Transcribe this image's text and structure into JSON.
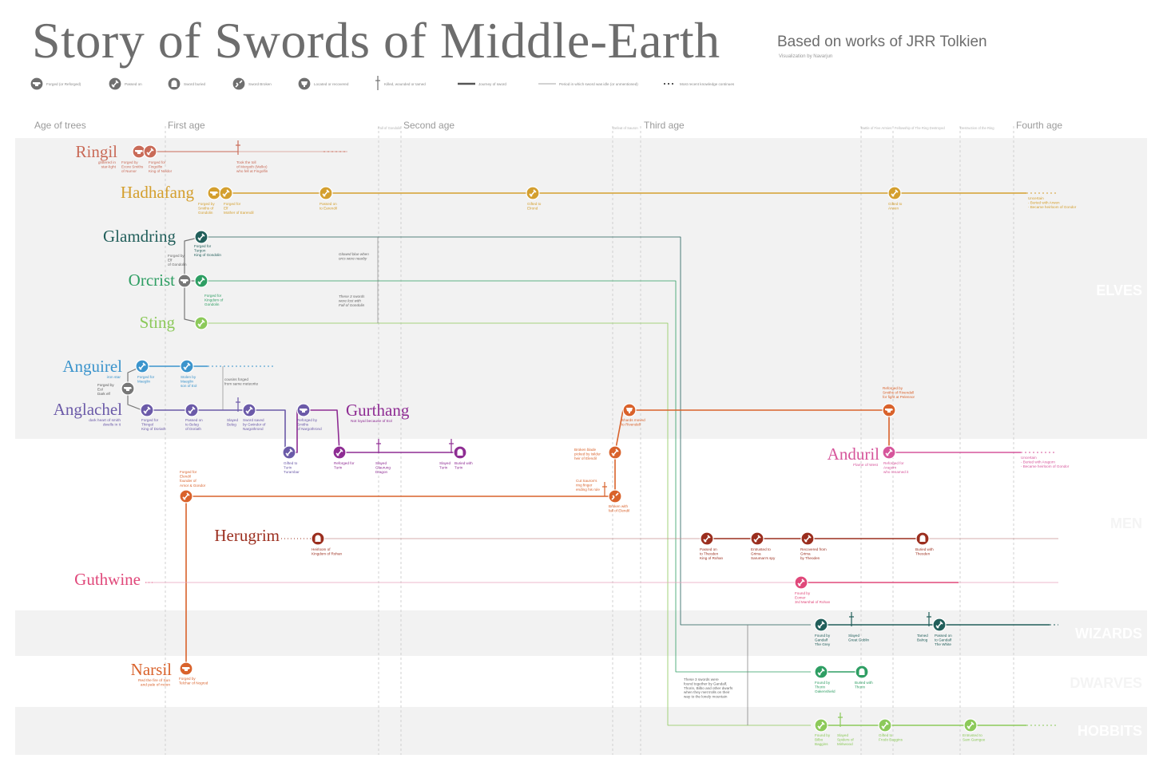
{
  "title": "Story of Swords of Middle-Earth",
  "subtitle": "Based on works of JRR Tolkien",
  "credit": "Visualization by Navarjun",
  "colors": {
    "band": "#f2f2f2",
    "grid": "#d0d0d0",
    "ringil": "#c96b58",
    "hadhafang": "#d49f2e",
    "glamdring": "#215e5a",
    "orcrist": "#2e9e63",
    "sting": "#8cc95a",
    "anguirel": "#3b94cc",
    "anglachel": "#6b5aa8",
    "gurthang": "#8e2c93",
    "anduril": "#d6559b",
    "narsil": "#d9622b",
    "herugrim": "#9b2e1e",
    "guthwine": "#e0487a",
    "gray": "#777777"
  },
  "legend": [
    {
      "icon": "anvil-icon",
      "label": "Forged (or Reforged)"
    },
    {
      "icon": "passed-icon",
      "label": "Passed on"
    },
    {
      "icon": "tomb-icon",
      "label": "Sword buried"
    },
    {
      "icon": "broken-sword-icon",
      "label": "Sword Broken"
    },
    {
      "icon": "cup-icon",
      "label": "Located or recovered"
    },
    {
      "icon": "dagger-icon",
      "label": "Killed, wounded or tamed"
    },
    {
      "icon": "thick-line",
      "label": "Journey of sword"
    },
    {
      "icon": "thin-line",
      "label": "Period in which sword was idle (or unmentioned)"
    },
    {
      "icon": "dotted-line",
      "label": "Most recent knowledge continues"
    }
  ],
  "ages": [
    "Age of trees",
    "First age",
    "Second age",
    "Third age",
    "Fourth age"
  ],
  "age_events": [
    "Fall of Gondolin",
    "Defeat of Sauron",
    "Battle of Five Armies",
    "Fellowship of The Ring Destroyed",
    "Destruction of the Ring"
  ],
  "categories": [
    "ELVES",
    "MEN",
    "WIZARDS",
    "DWARVES",
    "HOBBITS"
  ],
  "swords": {
    "ringil": {
      "name": "Ringil",
      "meaning": [
        "glittered in",
        "star-light"
      ]
    },
    "hadhafang": {
      "name": "Hadhafang"
    },
    "glamdring": {
      "name": "Glamdring"
    },
    "orcrist": {
      "name": "Orcrist"
    },
    "sting": {
      "name": "Sting"
    },
    "anguirel": {
      "name": "Anguirel",
      "meaning": [
        "iron star"
      ]
    },
    "anglachel": {
      "name": "Anglachel",
      "meaning": [
        "dark heart of smith",
        "dwells in it"
      ]
    },
    "gurthang": {
      "name": "Gurthang",
      "meaning": [
        "Not loyal because of Eol"
      ]
    },
    "anduril": {
      "name": "Anduril",
      "meaning": [
        "Flame of West"
      ]
    },
    "herugrim": {
      "name": "Herugrim"
    },
    "guthwine": {
      "name": "Guthwine"
    },
    "narsil": {
      "name": "Narsil",
      "meaning": [
        "Red the fire of Sun",
        "and pale of moon"
      ]
    }
  },
  "events": [
    {
      "label": [
        "Forged by",
        "Ecore Smiths",
        "of Numor"
      ]
    },
    {
      "label": [
        "Forged for",
        "Fingolfin",
        "King of Noldor"
      ]
    },
    {
      "label": [
        "Took the toll",
        "of Morgoth (Melko)",
        "who fell at Fingolfin"
      ]
    },
    {
      "label": [
        "Forged by",
        "Smiths of",
        "Gondolin"
      ]
    },
    {
      "label": [
        "Forged for",
        "Elf",
        "Mother of Earendil"
      ]
    },
    {
      "label": [
        "Passed on",
        "to Earendil"
      ]
    },
    {
      "label": [
        "Gifted to",
        "Elrond"
      ]
    },
    {
      "label": [
        "Gifted to",
        "Arwen"
      ]
    },
    {
      "label": [
        "Uncertain",
        "- Buried with Arwen",
        "- Became heirloom of Gondor"
      ]
    },
    {
      "label": [
        "Forged for",
        "Turgon",
        "King of Gondolin"
      ]
    },
    {
      "label": [
        "Forged by",
        "Elf",
        "of Gondolin"
      ]
    },
    {
      "label": [
        "Forged for",
        "Kingdom of",
        "Gondolin"
      ]
    },
    {
      "label": [
        "Glowed blue when",
        "orcs were nearby"
      ]
    },
    {
      "label": [
        "These 3 swords",
        "were lost with",
        "Fall of Gondolin"
      ]
    },
    {
      "label": [
        "Forged for",
        "Maeglin"
      ]
    },
    {
      "label": [
        "Stolen by",
        "Maeglin",
        "son of Eol"
      ]
    },
    {
      "label": [
        "Forged by",
        "Eol",
        "Dark elf"
      ]
    },
    {
      "label": [
        "cousins forged",
        "from same meteorite"
      ]
    },
    {
      "label": [
        "Forged for",
        "Thingol",
        "King of Doriath"
      ]
    },
    {
      "label": [
        "Passed on",
        "to Beleg",
        "of Doriath"
      ]
    },
    {
      "label": [
        "Slayed",
        "Beleg"
      ]
    },
    {
      "label": [
        "Sword saved",
        "by Gwindor of",
        "Nargothrond"
      ]
    },
    {
      "label": [
        "Reforged by",
        "Smiths",
        "of Nargothrond"
      ]
    },
    {
      "label": [
        "Gifted to",
        "Turin",
        "Turambar"
      ]
    },
    {
      "label": [
        "Reforged for",
        "Turin"
      ]
    },
    {
      "label": [
        "Slayed",
        "Glaurung",
        "Dragon"
      ]
    },
    {
      "label": [
        "Slayed",
        "Turin"
      ]
    },
    {
      "label": [
        "Buried with",
        "Turin"
      ]
    },
    {
      "label": [
        "Reforged by",
        "Smiths of Rivendell",
        "for fight at Pelennor"
      ]
    },
    {
      "label": [
        "Shards moved",
        "to Rivendell"
      ]
    },
    {
      "label": [
        "Broken blade",
        "picked by Isildur",
        "heir of Elendil"
      ]
    },
    {
      "label": [
        "Cut Sauron's",
        "ring finger",
        "ending his rule"
      ]
    },
    {
      "label": [
        "Broken with",
        "fall of Elendil"
      ]
    },
    {
      "label": [
        "Reforged for",
        "Aragorn",
        "who renamed it"
      ]
    },
    {
      "label": [
        "Uncertain",
        "- Buried with Aragorn",
        "- Became heirloom of Gondor"
      ]
    },
    {
      "label": [
        "Forged for",
        "Elendil",
        "founder of",
        "Arnor & Gondor"
      ]
    },
    {
      "label": [
        "Forged by",
        "Telchar of Nogrod"
      ]
    },
    {
      "label": [
        "Heirloom of",
        "Kingdom of Rohan"
      ]
    },
    {
      "label": [
        "Passed on",
        "to Theoden",
        "King of Rohan"
      ]
    },
    {
      "label": [
        "Entrusted to",
        "Grima",
        "Saruman's spy"
      ]
    },
    {
      "label": [
        "Recovered from",
        "Grima",
        "by Theoden"
      ]
    },
    {
      "label": [
        "Buried with",
        "Theoden"
      ]
    },
    {
      "label": [
        "Found by",
        "Eomer",
        "3rd Marshal of Rohan"
      ]
    },
    {
      "label": [
        "Found by",
        "Gandalf",
        "The Grey"
      ]
    },
    {
      "label": [
        "Slayed",
        "Great Goblin"
      ]
    },
    {
      "label": [
        "Tamed",
        "Balrog"
      ]
    },
    {
      "label": [
        "Passed on",
        "to Gandalf",
        "The White"
      ]
    },
    {
      "label": [
        "These 3 swords were",
        "found together by Gandalf,",
        "Thorin, Bilbo and other dwarfs",
        "when they met trolls on their",
        "way to the lonely mountain"
      ]
    },
    {
      "label": [
        "Found by",
        "Thorin",
        "Oakenshield"
      ]
    },
    {
      "label": [
        "Buried with",
        "Thorin"
      ]
    },
    {
      "label": [
        "Found by",
        "Bilbo",
        "Baggins"
      ]
    },
    {
      "label": [
        "Slayed",
        "Spiders of",
        "Mirkwood"
      ]
    },
    {
      "label": [
        "Gifted to",
        "Frodo Baggins"
      ]
    },
    {
      "label": [
        "Entrusted to",
        "Sam Gamgee"
      ]
    }
  ]
}
